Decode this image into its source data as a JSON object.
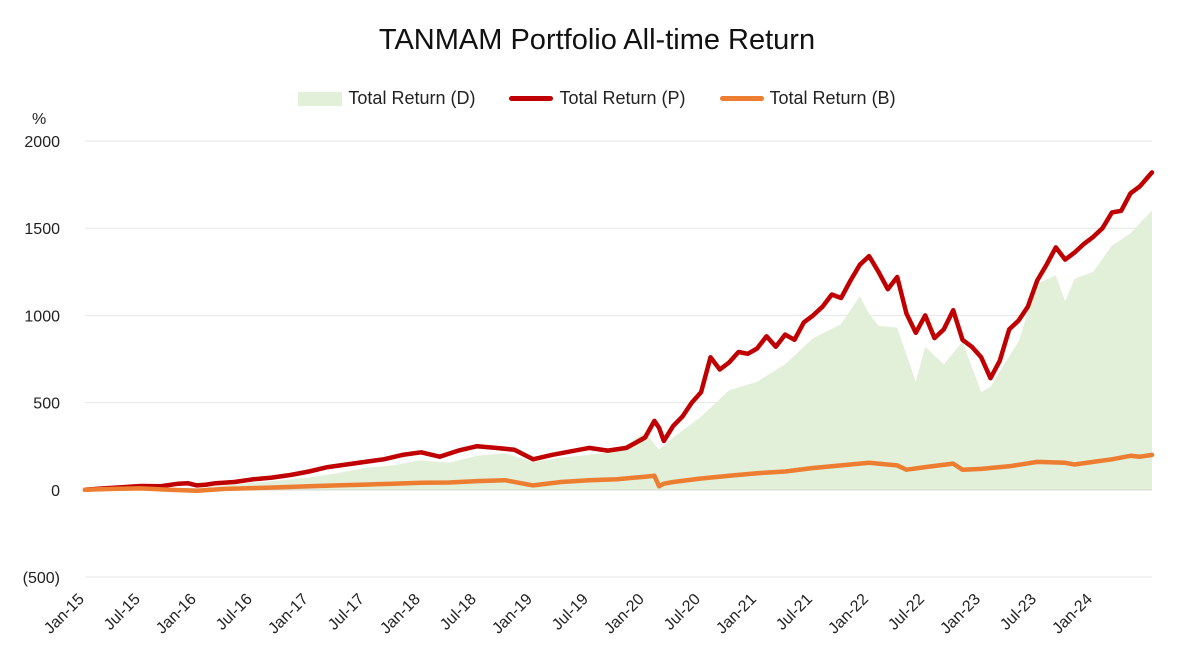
{
  "chart_data": {
    "type": "line",
    "title": "TANMAM Portfolio All-time Return",
    "ylabel": "%",
    "xlabel": "",
    "ylim": [
      -500,
      2000
    ],
    "yticks": [
      {
        "value": 2000,
        "label": "2000",
        "color": "#222222"
      },
      {
        "value": 1500,
        "label": "1500",
        "color": "#222222"
      },
      {
        "value": 1000,
        "label": "1000",
        "color": "#222222"
      },
      {
        "value": 500,
        "label": "500",
        "color": "#222222"
      },
      {
        "value": 0,
        "label": "0",
        "color": "#222222"
      },
      {
        "value": -500,
        "label": "(500)",
        "color": "#ff0000"
      }
    ],
    "xlim": [
      0,
      114.3
    ],
    "xticks": [
      {
        "value": 0,
        "label": "Jan-15"
      },
      {
        "value": 6,
        "label": "Jul-15"
      },
      {
        "value": 12,
        "label": "Jan-16"
      },
      {
        "value": 18,
        "label": "Jul-16"
      },
      {
        "value": 24,
        "label": "Jan-17"
      },
      {
        "value": 30,
        "label": "Jul-17"
      },
      {
        "value": 36,
        "label": "Jan-18"
      },
      {
        "value": 42,
        "label": "Jul-18"
      },
      {
        "value": 48,
        "label": "Jan-19"
      },
      {
        "value": 54,
        "label": "Jul-19"
      },
      {
        "value": 60,
        "label": "Jan-20"
      },
      {
        "value": 66,
        "label": "Jul-20"
      },
      {
        "value": 72,
        "label": "Jan-21"
      },
      {
        "value": 78,
        "label": "Jul-21"
      },
      {
        "value": 84,
        "label": "Jan-22"
      },
      {
        "value": 90,
        "label": "Jul-22"
      },
      {
        "value": 96,
        "label": "Jan-23"
      },
      {
        "value": 102,
        "label": "Jul-23"
      },
      {
        "value": 108,
        "label": "Jan-24"
      }
    ],
    "legend_position": "top-center",
    "series": [
      {
        "name": "Total Return (D)",
        "kind": "area",
        "color": "#e2efd9",
        "x": [
          0,
          3,
          6,
          9,
          12,
          15,
          18,
          21,
          24,
          27,
          30,
          33,
          36,
          39,
          42,
          45,
          48,
          51,
          54,
          57,
          60,
          61.5,
          63,
          66,
          69,
          72,
          75,
          78,
          81,
          83,
          84,
          85,
          87,
          89,
          90,
          92,
          94,
          96,
          97,
          98,
          100,
          102,
          104,
          105,
          106,
          108,
          110,
          112,
          113,
          114.3
        ],
        "values": [
          0,
          8,
          15,
          12,
          10,
          25,
          40,
          55,
          70,
          95,
          125,
          140,
          170,
          155,
          195,
          210,
          160,
          185,
          200,
          220,
          330,
          230,
          300,
          420,
          570,
          620,
          720,
          870,
          950,
          1110,
          1010,
          940,
          930,
          620,
          820,
          720,
          850,
          560,
          590,
          680,
          850,
          1180,
          1230,
          1080,
          1210,
          1250,
          1400,
          1470,
          1530,
          1600
        ]
      },
      {
        "name": "Total Return (P)",
        "kind": "line",
        "color": "#c00000",
        "x": [
          0,
          2,
          4,
          6,
          8,
          10,
          11,
          12,
          13,
          14,
          16,
          18,
          20,
          22,
          24,
          26,
          28,
          30,
          32,
          34,
          36,
          38,
          40,
          42,
          44,
          46,
          48,
          50,
          52,
          54,
          56,
          58,
          60,
          61,
          61.5,
          62,
          63,
          64,
          65,
          66,
          67,
          68,
          69,
          70,
          71,
          72,
          73,
          74,
          75,
          76,
          77,
          78,
          79,
          80,
          81,
          82,
          83,
          84,
          85,
          86,
          87,
          88,
          89,
          90,
          91,
          92,
          93,
          94,
          95,
          96,
          97,
          98,
          99,
          100,
          101,
          102,
          103,
          104,
          105,
          106,
          107,
          108,
          109,
          110,
          111,
          112,
          113,
          114.3
        ],
        "values": [
          0,
          8,
          15,
          22,
          20,
          35,
          38,
          25,
          30,
          38,
          45,
          60,
          70,
          85,
          105,
          130,
          145,
          160,
          175,
          200,
          215,
          190,
          225,
          250,
          240,
          230,
          175,
          200,
          220,
          240,
          225,
          240,
          300,
          395,
          355,
          280,
          365,
          420,
          500,
          560,
          760,
          690,
          730,
          790,
          780,
          810,
          880,
          820,
          890,
          860,
          960,
          1000,
          1050,
          1120,
          1100,
          1200,
          1290,
          1340,
          1250,
          1150,
          1220,
          1010,
          900,
          1000,
          870,
          920,
          1030,
          860,
          820,
          760,
          640,
          740,
          920,
          970,
          1050,
          1200,
          1290,
          1390,
          1320,
          1360,
          1410,
          1450,
          1500,
          1590,
          1600,
          1700,
          1740,
          1820
        ]
      },
      {
        "name": "Total Return (B)",
        "kind": "line",
        "color": "#ed7d31",
        "x": [
          0,
          3,
          6,
          9,
          12,
          15,
          18,
          21,
          24,
          27,
          30,
          33,
          36,
          39,
          42,
          45,
          48,
          51,
          54,
          57,
          60,
          61,
          61.5,
          62,
          63,
          66,
          69,
          72,
          75,
          78,
          81,
          84,
          87,
          88,
          90,
          93,
          94,
          96,
          99,
          102,
          105,
          106,
          108,
          110,
          112,
          113,
          114.3
        ],
        "values": [
          0,
          5,
          8,
          0,
          -5,
          5,
          10,
          15,
          20,
          25,
          30,
          35,
          40,
          42,
          50,
          55,
          25,
          45,
          55,
          60,
          75,
          80,
          20,
          35,
          45,
          65,
          80,
          95,
          105,
          125,
          140,
          155,
          140,
          115,
          130,
          150,
          115,
          120,
          135,
          160,
          155,
          145,
          160,
          175,
          195,
          190,
          200
        ]
      }
    ]
  }
}
